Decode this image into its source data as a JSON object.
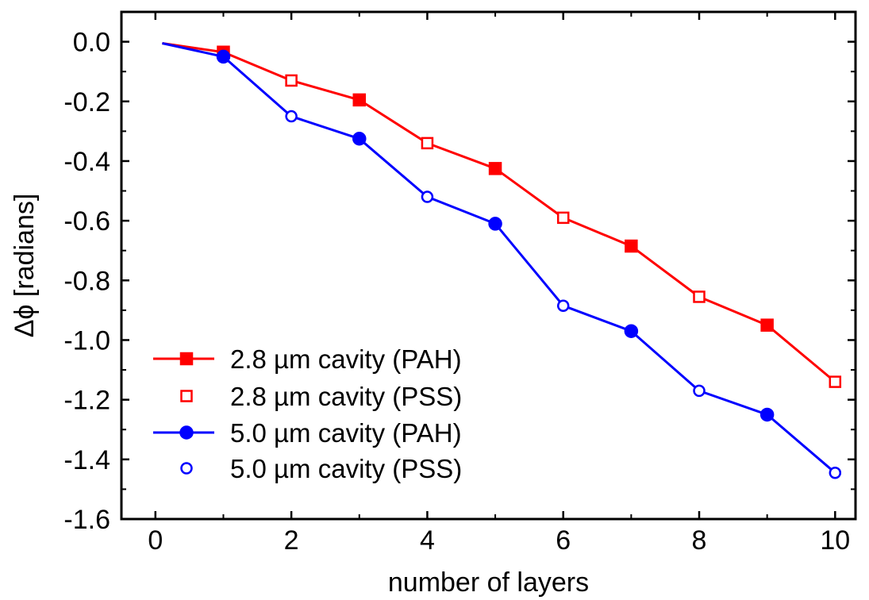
{
  "chart_data": {
    "type": "line",
    "xlabel": "number of layers",
    "ylabel": "Δϕ [radians]",
    "xlim": [
      -0.5,
      10.3
    ],
    "ylim": [
      -1.6,
      0.1
    ],
    "x_ticks": [
      0,
      2,
      4,
      6,
      8,
      10
    ],
    "x_tick_labels": [
      "0",
      "2",
      "4",
      "6",
      "8",
      "10"
    ],
    "y_ticks": [
      0.0,
      -0.2,
      -0.4,
      -0.6,
      -0.8,
      -1.0,
      -1.2,
      -1.4,
      -1.6
    ],
    "y_tick_labels": [
      "0.0",
      "-0.2",
      "-0.4",
      "-0.6",
      "-0.8",
      "-1.0",
      "-1.2",
      "-1.4",
      "-1.6"
    ],
    "grid": false,
    "legend_position": "bottom-left",
    "lines": [
      {
        "color": "#ff0000",
        "x": [
          0.1,
          1,
          2,
          3,
          4,
          5,
          6,
          7,
          8,
          9,
          10
        ],
        "y": [
          -0.005,
          -0.035,
          -0.13,
          -0.195,
          -0.34,
          -0.425,
          -0.59,
          -0.685,
          -0.855,
          -0.95,
          -1.14
        ]
      },
      {
        "color": "#0000ff",
        "x": [
          0.1,
          1,
          2,
          3,
          4,
          5,
          6,
          7,
          8,
          9,
          10
        ],
        "y": [
          -0.005,
          -0.05,
          -0.25,
          -0.325,
          -0.52,
          -0.61,
          -0.885,
          -0.97,
          -1.17,
          -1.25,
          -1.445
        ]
      }
    ],
    "series": [
      {
        "name": "2.8 µm cavity (PAH)",
        "color": "#ff0000",
        "marker": "square-filled",
        "x": [
          1,
          3,
          5,
          7,
          9
        ],
        "y": [
          -0.035,
          -0.195,
          -0.425,
          -0.685,
          -0.95
        ]
      },
      {
        "name": "2.8 µm cavity (PSS)",
        "color": "#ff0000",
        "marker": "square-open",
        "x": [
          2,
          4,
          6,
          8,
          10
        ],
        "y": [
          -0.13,
          -0.34,
          -0.59,
          -0.855,
          -1.14
        ]
      },
      {
        "name": "5.0 µm cavity (PAH)",
        "color": "#0000ff",
        "marker": "circle-filled",
        "x": [
          1,
          3,
          5,
          7,
          9
        ],
        "y": [
          -0.05,
          -0.325,
          -0.61,
          -0.97,
          -1.25
        ]
      },
      {
        "name": "5.0 µm cavity (PSS)",
        "color": "#0000ff",
        "marker": "circle-open",
        "x": [
          2,
          4,
          6,
          8,
          10
        ],
        "y": [
          -0.25,
          -0.52,
          -0.885,
          -1.17,
          -1.445
        ]
      }
    ]
  }
}
